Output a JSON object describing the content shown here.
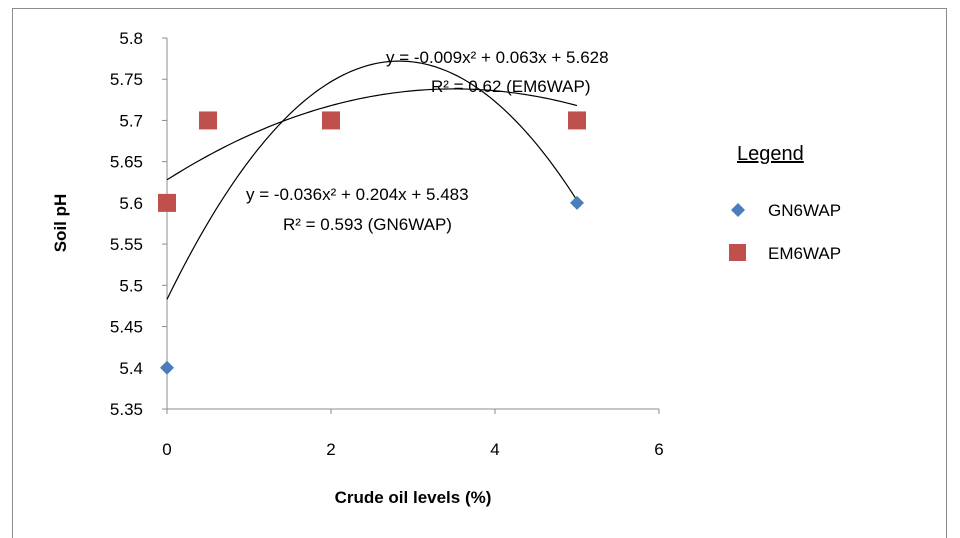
{
  "chart_data": {
    "type": "scatter",
    "xlabel": "Crude oil levels (%)",
    "ylabel": "Soil pH",
    "xlim": [
      0,
      6
    ],
    "ylim": [
      5.35,
      5.8
    ],
    "x_ticks": [
      "0",
      "2",
      "4",
      "6"
    ],
    "y_ticks": [
      "5.35",
      "5.4",
      "5.45",
      "5.5",
      "5.55",
      "5.6",
      "5.65",
      "5.7",
      "5.75",
      "5.8"
    ],
    "grid": false,
    "legend": {
      "title": "Legend",
      "placement": "right",
      "entries": [
        {
          "label": "GN6WAP",
          "marker": "diamond",
          "color": "#4a7ebb"
        },
        {
          "label": "EM6WAP",
          "marker": "square",
          "color": "#c0504d"
        }
      ]
    },
    "series": [
      {
        "name": "GN6WAP",
        "marker": "diamond",
        "color": "#4a7ebb",
        "points": [
          {
            "x": 0,
            "y": 5.4
          },
          {
            "x": 5,
            "y": 5.6
          }
        ]
      },
      {
        "name": "EM6WAP",
        "marker": "square",
        "color": "#c0504d",
        "points": [
          {
            "x": 0,
            "y": 5.6
          },
          {
            "x": 0.5,
            "y": 5.7
          },
          {
            "x": 2,
            "y": 5.7
          },
          {
            "x": 5,
            "y": 5.7
          }
        ]
      }
    ],
    "trendlines": [
      {
        "series": "GN6WAP",
        "type": "polynomial",
        "a": -0.036,
        "b": 0.204,
        "c": 5.483,
        "x_range": [
          0,
          5
        ],
        "color": "#000000"
      },
      {
        "series": "EM6WAP",
        "type": "polynomial",
        "a": -0.009,
        "b": 0.063,
        "c": 5.628,
        "x_range": [
          0,
          5
        ],
        "color": "#000000"
      }
    ],
    "annotations": {
      "em_equation": "y = -0.009x² + 0.063x + 5.628",
      "em_r2": "R² = 0.62 (EM6WAP)",
      "gn_equation": "y = -0.036x² + 0.204x + 5.483",
      "gn_r2": "R² = 0.593 (GN6WAP)"
    }
  }
}
